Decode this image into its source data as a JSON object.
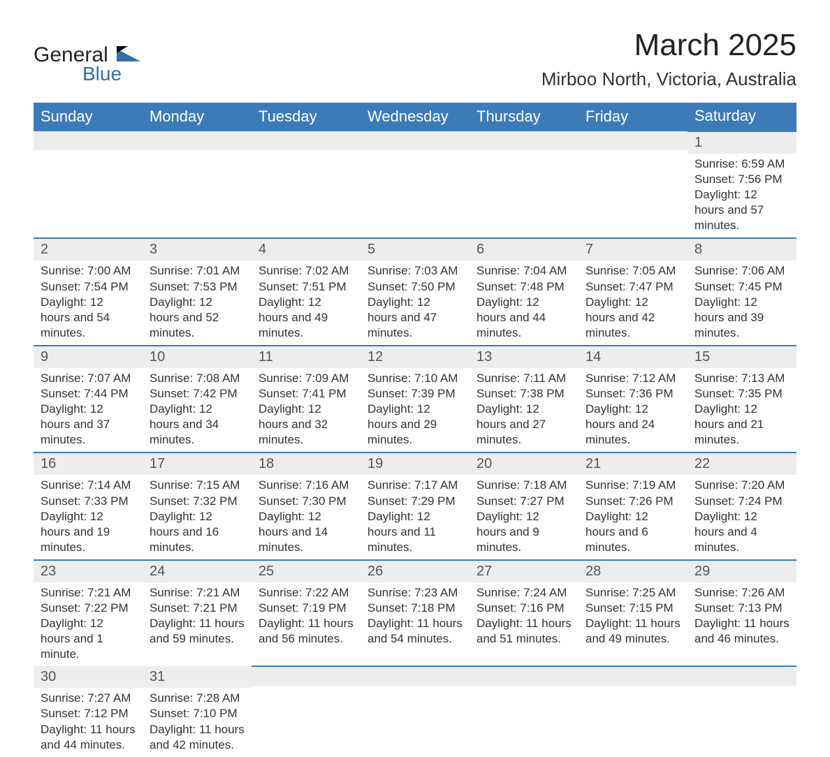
{
  "brand": {
    "top": "General",
    "bottom": "Blue"
  },
  "title": {
    "month": "March 2025",
    "location": "Mirboo North, Victoria, Australia"
  },
  "colors": {
    "header_bg": "#3d7bb8",
    "header_text": "#ffffff",
    "daynum_bg": "#ededed",
    "row_divider": "#3d7bb8",
    "text": "#333333",
    "brand_blue": "#2f6fa7"
  },
  "weekdays": [
    "Sunday",
    "Monday",
    "Tuesday",
    "Wednesday",
    "Thursday",
    "Friday",
    "Saturday"
  ],
  "weeks": [
    [
      null,
      null,
      null,
      null,
      null,
      null,
      {
        "n": "1",
        "sr": "Sunrise: 6:59 AM",
        "ss": "Sunset: 7:56 PM",
        "dl": "Daylight: 12 hours and 57 minutes."
      }
    ],
    [
      {
        "n": "2",
        "sr": "Sunrise: 7:00 AM",
        "ss": "Sunset: 7:54 PM",
        "dl": "Daylight: 12 hours and 54 minutes."
      },
      {
        "n": "3",
        "sr": "Sunrise: 7:01 AM",
        "ss": "Sunset: 7:53 PM",
        "dl": "Daylight: 12 hours and 52 minutes."
      },
      {
        "n": "4",
        "sr": "Sunrise: 7:02 AM",
        "ss": "Sunset: 7:51 PM",
        "dl": "Daylight: 12 hours and 49 minutes."
      },
      {
        "n": "5",
        "sr": "Sunrise: 7:03 AM",
        "ss": "Sunset: 7:50 PM",
        "dl": "Daylight: 12 hours and 47 minutes."
      },
      {
        "n": "6",
        "sr": "Sunrise: 7:04 AM",
        "ss": "Sunset: 7:48 PM",
        "dl": "Daylight: 12 hours and 44 minutes."
      },
      {
        "n": "7",
        "sr": "Sunrise: 7:05 AM",
        "ss": "Sunset: 7:47 PM",
        "dl": "Daylight: 12 hours and 42 minutes."
      },
      {
        "n": "8",
        "sr": "Sunrise: 7:06 AM",
        "ss": "Sunset: 7:45 PM",
        "dl": "Daylight: 12 hours and 39 minutes."
      }
    ],
    [
      {
        "n": "9",
        "sr": "Sunrise: 7:07 AM",
        "ss": "Sunset: 7:44 PM",
        "dl": "Daylight: 12 hours and 37 minutes."
      },
      {
        "n": "10",
        "sr": "Sunrise: 7:08 AM",
        "ss": "Sunset: 7:42 PM",
        "dl": "Daylight: 12 hours and 34 minutes."
      },
      {
        "n": "11",
        "sr": "Sunrise: 7:09 AM",
        "ss": "Sunset: 7:41 PM",
        "dl": "Daylight: 12 hours and 32 minutes."
      },
      {
        "n": "12",
        "sr": "Sunrise: 7:10 AM",
        "ss": "Sunset: 7:39 PM",
        "dl": "Daylight: 12 hours and 29 minutes."
      },
      {
        "n": "13",
        "sr": "Sunrise: 7:11 AM",
        "ss": "Sunset: 7:38 PM",
        "dl": "Daylight: 12 hours and 27 minutes."
      },
      {
        "n": "14",
        "sr": "Sunrise: 7:12 AM",
        "ss": "Sunset: 7:36 PM",
        "dl": "Daylight: 12 hours and 24 minutes."
      },
      {
        "n": "15",
        "sr": "Sunrise: 7:13 AM",
        "ss": "Sunset: 7:35 PM",
        "dl": "Daylight: 12 hours and 21 minutes."
      }
    ],
    [
      {
        "n": "16",
        "sr": "Sunrise: 7:14 AM",
        "ss": "Sunset: 7:33 PM",
        "dl": "Daylight: 12 hours and 19 minutes."
      },
      {
        "n": "17",
        "sr": "Sunrise: 7:15 AM",
        "ss": "Sunset: 7:32 PM",
        "dl": "Daylight: 12 hours and 16 minutes."
      },
      {
        "n": "18",
        "sr": "Sunrise: 7:16 AM",
        "ss": "Sunset: 7:30 PM",
        "dl": "Daylight: 12 hours and 14 minutes."
      },
      {
        "n": "19",
        "sr": "Sunrise: 7:17 AM",
        "ss": "Sunset: 7:29 PM",
        "dl": "Daylight: 12 hours and 11 minutes."
      },
      {
        "n": "20",
        "sr": "Sunrise: 7:18 AM",
        "ss": "Sunset: 7:27 PM",
        "dl": "Daylight: 12 hours and 9 minutes."
      },
      {
        "n": "21",
        "sr": "Sunrise: 7:19 AM",
        "ss": "Sunset: 7:26 PM",
        "dl": "Daylight: 12 hours and 6 minutes."
      },
      {
        "n": "22",
        "sr": "Sunrise: 7:20 AM",
        "ss": "Sunset: 7:24 PM",
        "dl": "Daylight: 12 hours and 4 minutes."
      }
    ],
    [
      {
        "n": "23",
        "sr": "Sunrise: 7:21 AM",
        "ss": "Sunset: 7:22 PM",
        "dl": "Daylight: 12 hours and 1 minute."
      },
      {
        "n": "24",
        "sr": "Sunrise: 7:21 AM",
        "ss": "Sunset: 7:21 PM",
        "dl": "Daylight: 11 hours and 59 minutes."
      },
      {
        "n": "25",
        "sr": "Sunrise: 7:22 AM",
        "ss": "Sunset: 7:19 PM",
        "dl": "Daylight: 11 hours and 56 minutes."
      },
      {
        "n": "26",
        "sr": "Sunrise: 7:23 AM",
        "ss": "Sunset: 7:18 PM",
        "dl": "Daylight: 11 hours and 54 minutes."
      },
      {
        "n": "27",
        "sr": "Sunrise: 7:24 AM",
        "ss": "Sunset: 7:16 PM",
        "dl": "Daylight: 11 hours and 51 minutes."
      },
      {
        "n": "28",
        "sr": "Sunrise: 7:25 AM",
        "ss": "Sunset: 7:15 PM",
        "dl": "Daylight: 11 hours and 49 minutes."
      },
      {
        "n": "29",
        "sr": "Sunrise: 7:26 AM",
        "ss": "Sunset: 7:13 PM",
        "dl": "Daylight: 11 hours and 46 minutes."
      }
    ],
    [
      {
        "n": "30",
        "sr": "Sunrise: 7:27 AM",
        "ss": "Sunset: 7:12 PM",
        "dl": "Daylight: 11 hours and 44 minutes."
      },
      {
        "n": "31",
        "sr": "Sunrise: 7:28 AM",
        "ss": "Sunset: 7:10 PM",
        "dl": "Daylight: 11 hours and 42 minutes."
      },
      null,
      null,
      null,
      null,
      null
    ]
  ]
}
